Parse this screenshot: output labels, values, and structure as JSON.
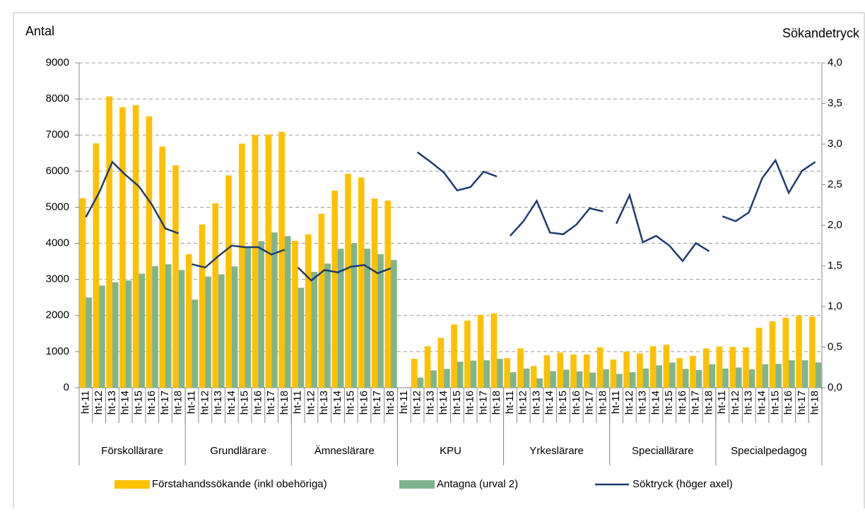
{
  "chart_data": {
    "type": "bar",
    "y_label": "Antal",
    "y2_label": "Sökandetryck",
    "groups": [
      {
        "name": "Förskollärare",
        "categories": [
          "ht-11",
          "ht-12",
          "ht-13",
          "ht-14",
          "ht-15",
          "ht-16",
          "ht-17",
          "ht-18"
        ]
      },
      {
        "name": "Grundlärare",
        "categories": [
          "ht-11",
          "ht-12",
          "ht-13",
          "ht-14",
          "ht-15",
          "ht-16",
          "ht-17",
          "ht-18"
        ]
      },
      {
        "name": "Ämneslärare",
        "categories": [
          "ht-11",
          "ht-12",
          "ht-13",
          "ht-14",
          "ht-15",
          "ht-16",
          "ht-17",
          "ht-18"
        ]
      },
      {
        "name": "KPU",
        "categories": [
          "ht-11",
          "ht-12",
          "ht-13",
          "ht-14",
          "ht-15",
          "ht-16",
          "ht-17",
          "ht-18"
        ]
      },
      {
        "name": "Yrkeslärare",
        "categories": [
          "ht-11",
          "ht-12",
          "ht-13",
          "ht-14",
          "ht-15",
          "ht-16",
          "ht-17",
          "ht-18"
        ]
      },
      {
        "name": "Speciallärare",
        "categories": [
          "ht-11",
          "ht-12",
          "ht-13",
          "ht-14",
          "ht-15",
          "ht-16",
          "ht-17",
          "ht-18"
        ]
      },
      {
        "name": "Specialpedagog",
        "categories": [
          "ht-11",
          "ht-12",
          "ht-13",
          "ht-14",
          "ht-15",
          "ht-16",
          "ht-17",
          "ht-18"
        ]
      }
    ],
    "series": [
      {
        "name": "Förstahandssökande (inkl obehöriga)",
        "type": "bar",
        "color": "#ffc000",
        "values": [
          5250,
          6770,
          8070,
          7770,
          7830,
          7520,
          6680,
          6160,
          3700,
          4520,
          5110,
          5880,
          6760,
          7000,
          7010,
          7090,
          4070,
          4250,
          4820,
          5460,
          5930,
          5820,
          5240,
          5180,
          null,
          800,
          1150,
          1380,
          1750,
          1860,
          2020,
          2060,
          820,
          1090,
          600,
          900,
          970,
          920,
          920,
          1120,
          780,
          1000,
          950,
          1150,
          1190,
          820,
          880,
          1090,
          1140,
          1130,
          1120,
          1660,
          1840,
          1940,
          2000,
          1970
        ]
      },
      {
        "name": "Antagna (urval 2)",
        "type": "bar",
        "color": "#7fb48f",
        "values": [
          2500,
          2830,
          2920,
          2970,
          3160,
          3370,
          3420,
          3260,
          2440,
          3080,
          3140,
          3360,
          3920,
          4060,
          4300,
          4200,
          2770,
          3210,
          3440,
          3850,
          4000,
          3850,
          3700,
          3540,
          null,
          280,
          480,
          520,
          720,
          750,
          760,
          800,
          430,
          530,
          260,
          460,
          500,
          450,
          420,
          510,
          380,
          430,
          530,
          620,
          700,
          520,
          490,
          650,
          530,
          560,
          510,
          650,
          660,
          760,
          760,
          700
        ]
      },
      {
        "name": "Söktryck (höger axel)",
        "type": "line",
        "axis": "y2",
        "color": "#1f3c6e",
        "values": [
          2.1,
          2.4,
          2.78,
          2.62,
          2.48,
          2.25,
          1.96,
          1.9,
          1.52,
          1.48,
          1.62,
          1.75,
          1.73,
          1.73,
          1.64,
          1.7,
          1.48,
          1.32,
          1.45,
          1.42,
          1.49,
          1.51,
          1.41,
          1.47,
          null,
          2.9,
          2.78,
          2.65,
          2.43,
          2.47,
          2.66,
          2.6,
          1.87,
          2.05,
          2.3,
          1.91,
          1.89,
          2.01,
          2.21,
          2.17,
          2.02,
          2.37,
          1.79,
          1.87,
          1.75,
          1.56,
          1.78,
          1.68,
          2.11,
          2.05,
          2.16,
          2.58,
          2.8,
          2.4,
          2.67,
          2.78
        ]
      }
    ],
    "ylim": [
      0,
      9000
    ],
    "yticks": [
      0,
      1000,
      2000,
      3000,
      4000,
      5000,
      6000,
      7000,
      8000,
      9000
    ],
    "y2lim": [
      0,
      4
    ],
    "y2ticks": [
      {
        "value": 0,
        "label": "0,0"
      },
      {
        "value": 0.5,
        "label": "0,5"
      },
      {
        "value": 1,
        "label": "1,0"
      },
      {
        "value": 1.5,
        "label": "1,5"
      },
      {
        "value": 2,
        "label": "2,0"
      },
      {
        "value": 2.5,
        "label": "2,5"
      },
      {
        "value": 3,
        "label": "3,0"
      },
      {
        "value": 3.5,
        "label": "3,5"
      },
      {
        "value": 4,
        "label": "4,0"
      }
    ],
    "grid": true,
    "legend": "bottom"
  }
}
